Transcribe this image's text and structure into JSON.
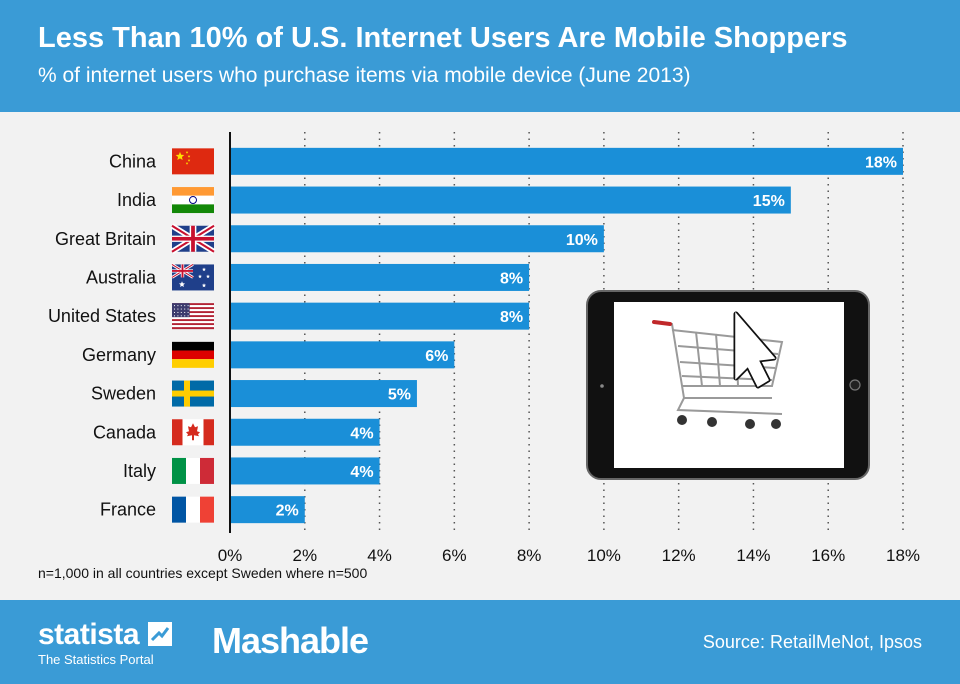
{
  "header": {
    "title": "Less Than 10% of U.S. Internet Users Are Mobile Shoppers",
    "subtitle": "% of internet users who purchase items via mobile device (June 2013)"
  },
  "chart_data": {
    "type": "bar",
    "orientation": "horizontal",
    "categories": [
      "China",
      "India",
      "Great Britain",
      "Australia",
      "United States",
      "Germany",
      "Sweden",
      "Canada",
      "Italy",
      "France"
    ],
    "values": [
      18,
      15,
      10,
      8,
      8,
      6,
      5,
      4,
      4,
      2
    ],
    "value_labels": [
      "18%",
      "15%",
      "10%",
      "8%",
      "8%",
      "6%",
      "5%",
      "4%",
      "4%",
      "2%"
    ],
    "xlim": [
      0,
      18
    ],
    "xticks": [
      "0%",
      "2%",
      "4%",
      "6%",
      "8%",
      "10%",
      "12%",
      "14%",
      "16%",
      "18%"
    ],
    "grid": "vertical-dotted",
    "bar_color": "#1a8fd8"
  },
  "flags": [
    "china-flag-icon",
    "india-flag-icon",
    "uk-flag-icon",
    "australia-flag-icon",
    "usa-flag-icon",
    "germany-flag-icon",
    "sweden-flag-icon",
    "canada-flag-icon",
    "italy-flag-icon",
    "france-flag-icon"
  ],
  "footnote": "n=1,000 in all countries except Sweden where n=500",
  "footer": {
    "brand": "statista",
    "tagline": "The Statistics Portal",
    "partner": "Mashable",
    "source": "Source: RetailMeNot, Ipsos"
  },
  "colors": {
    "header_bg": "#3a9bd6",
    "background": "#f2f2f2",
    "bar": "#1a8fd8"
  }
}
